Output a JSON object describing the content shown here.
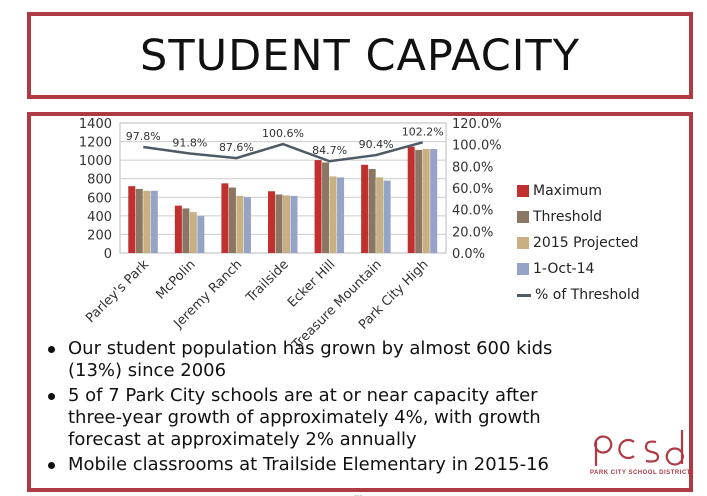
{
  "title": "STUDENT CAPACITY",
  "chart_data": {
    "type": "bar",
    "categories": [
      "Parley's Park",
      "McPolin",
      "Jeremy Ranch",
      "Trailside",
      "Ecker Hill",
      "Treasure Mountain",
      "Park City High"
    ],
    "series": [
      {
        "name": "Maximum",
        "color": "#c0302f",
        "values": [
          720,
          510,
          750,
          665,
          1000,
          950,
          1145
        ]
      },
      {
        "name": "Threshold",
        "color": "#8b7563",
        "values": [
          690,
          480,
          705,
          630,
          975,
          905,
          1110
        ]
      },
      {
        "name": "2015 Projected",
        "color": "#c8b082",
        "values": [
          670,
          440,
          615,
          620,
          825,
          815,
          1120
        ]
      },
      {
        "name": "1-Oct-14",
        "color": "#95a3c6",
        "values": [
          670,
          400,
          600,
          615,
          815,
          780,
          1120
        ]
      }
    ],
    "line_series": {
      "name": "% of Threshold",
      "color": "#4e5a66",
      "values": [
        97.8,
        91.8,
        87.6,
        100.6,
        84.7,
        90.4,
        102.2
      ],
      "labels": [
        "97.8%",
        "91.8%",
        "87.6%",
        "100.6%",
        "84.7%",
        "90.4%",
        "102.2%"
      ]
    },
    "ylim": [
      0,
      1400
    ],
    "y_ticks": [
      "0",
      "200",
      "400",
      "600",
      "800",
      "1000",
      "1200",
      "1400"
    ],
    "y2lim": [
      0,
      120
    ],
    "y2_ticks": [
      "0.0%",
      "20.0%",
      "40.0%",
      "60.0%",
      "80.0%",
      "100.0%",
      "120.0%"
    ],
    "gridlines": true,
    "legend_position": "right"
  },
  "bullets": [
    "Our student population has grown by almost 600 kids (13%) since 2006",
    "5 of 7 Park City schools are at or near capacity after three-year growth of approximately 4%, with growth forecast at approximately 2% annually",
    "Mobile classrooms at Trailside Elementary in 2015-16"
  ],
  "logo": {
    "mark": "pcsd",
    "text": "PARK CITY SCHOOL DISTRICT",
    "color": "#b03a44"
  },
  "page_indicator": "▪▪▪"
}
